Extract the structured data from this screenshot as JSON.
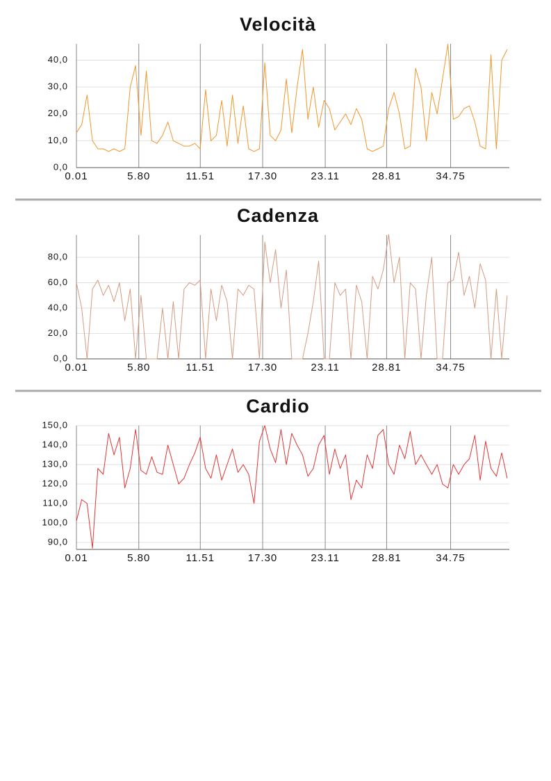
{
  "chart_data": [
    {
      "type": "line",
      "title": "Velocità",
      "color": "#f0962a",
      "xlim": [
        0.01,
        40.2
      ],
      "ylim": [
        0,
        46.1
      ],
      "xticks": [
        0.01,
        {
          "value": 5.8,
          "label": "5.80"
        },
        11.51,
        {
          "value": 17.3,
          "label": "17.30"
        },
        23.11,
        28.81,
        34.75
      ],
      "yticks": [
        {
          "value": 0,
          "label": "0,0"
        },
        {
          "value": 10,
          "label": "10,0"
        },
        {
          "value": 20,
          "label": "20,0"
        },
        {
          "value": 30,
          "label": "30,0"
        },
        {
          "value": 40,
          "label": "40,0"
        }
      ],
      "grid": true,
      "x": [
        0.01,
        0.5,
        1,
        1.5,
        2,
        2.5,
        3,
        3.5,
        4,
        4.5,
        5,
        5.5,
        6,
        6.5,
        7,
        7.5,
        8,
        8.5,
        9,
        9.5,
        10,
        10.5,
        11,
        11.5,
        12,
        12.5,
        13,
        13.5,
        14,
        14.5,
        15,
        15.5,
        16,
        16.5,
        17,
        17.5,
        18,
        18.5,
        19,
        19.5,
        20,
        20.5,
        21,
        21.5,
        22,
        22.5,
        23,
        23.5,
        24,
        24.5,
        25,
        25.5,
        26,
        26.5,
        27,
        27.5,
        28,
        28.5,
        29,
        29.5,
        30,
        30.5,
        31,
        31.5,
        32,
        32.5,
        33,
        33.5,
        34,
        34.5,
        35,
        35.5,
        36,
        36.5,
        37,
        37.5,
        38,
        38.5,
        39,
        39.5,
        40
      ],
      "values": [
        13,
        16,
        27,
        10,
        7,
        7,
        6,
        7,
        6,
        7,
        30,
        38,
        12,
        36,
        10,
        9,
        12,
        17,
        10,
        9,
        8,
        8,
        9,
        7,
        29,
        10,
        12,
        25,
        8,
        27,
        9,
        23,
        7,
        6,
        7,
        39,
        12,
        10,
        14,
        33,
        13,
        30,
        44,
        18,
        30,
        15,
        25,
        22,
        14,
        17,
        20,
        16,
        22,
        18,
        7,
        6,
        7,
        8,
        22,
        28,
        20,
        7,
        8,
        37,
        30,
        10,
        28,
        20,
        33,
        46,
        18,
        19,
        22,
        23,
        17,
        8,
        7,
        42,
        7,
        40,
        44
      ]
    },
    {
      "type": "line",
      "title": "Cadenza",
      "color": "#d49a80",
      "xlim": [
        0.01,
        40.2
      ],
      "ylim": [
        0,
        97.5
      ],
      "xticks": [
        0.01,
        {
          "value": 5.8,
          "label": "5.80"
        },
        11.51,
        {
          "value": 17.3,
          "label": "17.30"
        },
        23.11,
        28.81,
        34.75
      ],
      "yticks": [
        {
          "value": 0,
          "label": "0,0"
        },
        {
          "value": 20,
          "label": "20,0"
        },
        {
          "value": 40,
          "label": "40,0"
        },
        {
          "value": 60,
          "label": "60,0"
        },
        {
          "value": 80,
          "label": "80,0"
        }
      ],
      "grid": true,
      "x": [
        0.01,
        0.5,
        1,
        1.5,
        2,
        2.5,
        3,
        3.5,
        4,
        4.5,
        5,
        5.5,
        6,
        6.5,
        7,
        7.5,
        8,
        8.5,
        9,
        9.5,
        10,
        10.5,
        11,
        11.5,
        12,
        12.5,
        13,
        13.5,
        14,
        14.5,
        15,
        15.5,
        16,
        16.5,
        17,
        17.5,
        18,
        18.5,
        19,
        19.5,
        20,
        20.5,
        21,
        21.5,
        22,
        22.5,
        23,
        23.5,
        24,
        24.5,
        25,
        25.5,
        26,
        26.5,
        27,
        27.5,
        28,
        28.5,
        29,
        29.5,
        30,
        30.5,
        31,
        31.5,
        32,
        32.5,
        33,
        33.5,
        34,
        34.5,
        35,
        35.5,
        36,
        36.5,
        37,
        37.5,
        38,
        38.5,
        39,
        39.5,
        40
      ],
      "values": [
        60,
        40,
        0,
        55,
        62,
        50,
        58,
        45,
        60,
        30,
        55,
        0,
        50,
        0,
        0,
        0,
        40,
        0,
        45,
        0,
        55,
        60,
        58,
        62,
        0,
        55,
        30,
        58,
        45,
        0,
        55,
        50,
        58,
        55,
        0,
        92,
        60,
        86,
        40,
        70,
        0,
        0,
        0,
        20,
        45,
        77,
        0,
        0,
        60,
        50,
        55,
        0,
        58,
        45,
        0,
        65,
        55,
        70,
        98,
        60,
        80,
        0,
        60,
        55,
        0,
        50,
        80,
        0,
        0,
        60,
        62,
        84,
        50,
        65,
        40,
        75,
        62,
        0,
        55,
        0,
        50
      ]
    },
    {
      "type": "line",
      "title": "Cardio",
      "color": "#e03434",
      "xlim": [
        0.01,
        40.2
      ],
      "ylim": [
        86.4,
        150
      ],
      "xticks": [
        0.01,
        {
          "value": 5.8,
          "label": "5.80"
        },
        11.51,
        {
          "value": 17.3,
          "label": "17.30"
        },
        23.11,
        28.81,
        34.75
      ],
      "yticks": [
        {
          "value": 90,
          "label": "90,0"
        },
        {
          "value": 100,
          "label": "100,0"
        },
        {
          "value": 110,
          "label": "110,0"
        },
        {
          "value": 120,
          "label": "120,0"
        },
        {
          "value": 130,
          "label": "130,0"
        },
        {
          "value": 140,
          "label": "140,0"
        },
        {
          "value": 150,
          "label": "150,0"
        }
      ],
      "grid": true,
      "x": [
        0.01,
        0.5,
        1,
        1.5,
        2,
        2.5,
        3,
        3.5,
        4,
        4.5,
        5,
        5.5,
        6,
        6.5,
        7,
        7.5,
        8,
        8.5,
        9,
        9.5,
        10,
        10.5,
        11,
        11.5,
        12,
        12.5,
        13,
        13.5,
        14,
        14.5,
        15,
        15.5,
        16,
        16.5,
        17,
        17.5,
        18,
        18.5,
        19,
        19.5,
        20,
        20.5,
        21,
        21.5,
        22,
        22.5,
        23,
        23.5,
        24,
        24.5,
        25,
        25.5,
        26,
        26.5,
        27,
        27.5,
        28,
        28.5,
        29,
        29.5,
        30,
        30.5,
        31,
        31.5,
        32,
        32.5,
        33,
        33.5,
        34,
        34.5,
        35,
        35.5,
        36,
        36.5,
        37,
        37.5,
        38,
        38.5,
        39,
        39.5,
        40
      ],
      "values": [
        101,
        112,
        110,
        87,
        128,
        125,
        146,
        135,
        144,
        118,
        128,
        148,
        127,
        125,
        134,
        126,
        125,
        140,
        130,
        120,
        123,
        130,
        136,
        144,
        128,
        123,
        135,
        122,
        130,
        138,
        126,
        130,
        125,
        110,
        142,
        150,
        138,
        131,
        148,
        130,
        146,
        140,
        135,
        124,
        128,
        140,
        145,
        125,
        138,
        128,
        135,
        112,
        122,
        118,
        135,
        128,
        145,
        148,
        130,
        125,
        140,
        133,
        147,
        130,
        135,
        130,
        125,
        130,
        120,
        118,
        130,
        125,
        130,
        133,
        145,
        122,
        142,
        128,
        124,
        136,
        123
      ]
    }
  ]
}
